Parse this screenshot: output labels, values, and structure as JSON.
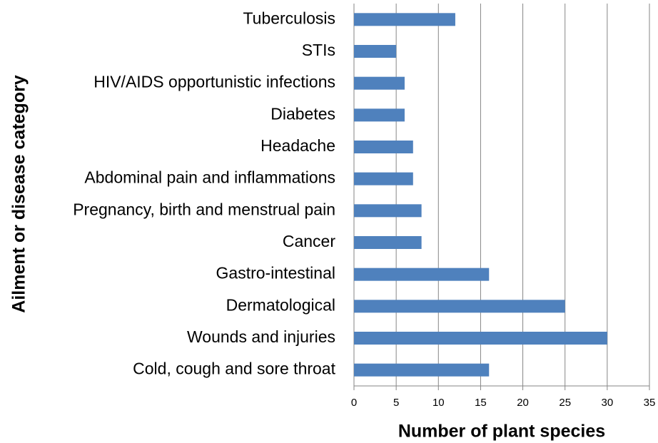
{
  "chart_data": {
    "type": "bar",
    "orientation": "horizontal",
    "x_label": "Number of plant species",
    "y_label": "Ailment or disease category",
    "categories": [
      "Tuberculosis",
      "STIs",
      "HIV/AIDS opportunistic infections",
      "Diabetes",
      "Headache",
      "Abdominal pain and inflammations",
      "Pregnancy, birth and menstrual pain",
      "Cancer",
      "Gastro-intestinal",
      "Dermatological",
      "Wounds and injuries",
      "Cold, cough and sore throat"
    ],
    "values": [
      12,
      5,
      6,
      6,
      7,
      7,
      8,
      8,
      16,
      25,
      30,
      16
    ],
    "color": "#4f81bd",
    "xlim": [
      0,
      35
    ],
    "xticks": [
      0,
      5,
      10,
      15,
      20,
      25,
      30,
      35
    ],
    "grid": true
  }
}
